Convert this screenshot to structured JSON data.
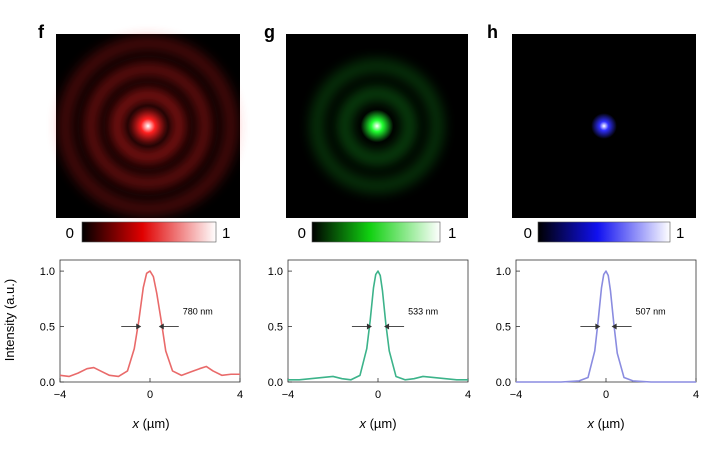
{
  "chart_data": [
    {
      "panel": "f",
      "type": "line",
      "color": "#e96a6a",
      "image_color": "#ff2020",
      "colorbar": {
        "min_label": "0",
        "max_label": "1",
        "start_color": "#000000",
        "mid_color": "#e00000",
        "end_color": "#ffffff"
      },
      "rings": [
        0.34,
        0.62,
        0.9
      ],
      "ring_strength": 0.55,
      "spot_size": 0.11,
      "xlabel_var": "x",
      "xlabel_unit": " (µm)",
      "ylabel": "Intensity (a.u.)",
      "show_ylabel": true,
      "xlim": [
        -4,
        4
      ],
      "ylim": [
        0,
        1.1
      ],
      "xticks": [
        -4,
        0,
        4
      ],
      "yticks": [
        0.0,
        0.5,
        1.0
      ],
      "x": [
        -4,
        -3.6,
        -3.2,
        -2.8,
        -2.5,
        -2.2,
        -1.8,
        -1.4,
        -1.0,
        -0.7,
        -0.5,
        -0.3,
        -0.15,
        0,
        0.15,
        0.3,
        0.5,
        0.7,
        1.0,
        1.4,
        1.8,
        2.2,
        2.5,
        2.8,
        3.2,
        3.6,
        4
      ],
      "y": [
        0.06,
        0.05,
        0.08,
        0.12,
        0.13,
        0.1,
        0.06,
        0.05,
        0.1,
        0.3,
        0.55,
        0.85,
        0.98,
        1.0,
        0.95,
        0.8,
        0.55,
        0.28,
        0.1,
        0.06,
        0.09,
        0.12,
        0.14,
        0.1,
        0.06,
        0.07,
        0.07
      ],
      "fwhm_label": "780 nm",
      "fwhm_left": -0.39,
      "fwhm_right": 0.39,
      "fwhm_level": 0.5
    },
    {
      "panel": "g",
      "type": "line",
      "color": "#3cb38a",
      "image_color": "#20ff30",
      "colorbar": {
        "min_label": "0",
        "max_label": "1",
        "start_color": "#000000",
        "mid_color": "#10d010",
        "end_color": "#ffffff"
      },
      "rings": [
        0.36,
        0.66
      ],
      "ring_strength": 0.28,
      "spot_size": 0.09,
      "xlabel_var": "x",
      "xlabel_unit": " (µm)",
      "ylabel": "",
      "show_ylabel": false,
      "xlim": [
        -4,
        4
      ],
      "ylim": [
        0,
        1.1
      ],
      "xticks": [
        -4,
        0,
        4
      ],
      "yticks": [
        0.0,
        0.5,
        1.0
      ],
      "x": [
        -4,
        -3.5,
        -3.0,
        -2.5,
        -2.0,
        -1.6,
        -1.2,
        -0.8,
        -0.5,
        -0.35,
        -0.2,
        -0.1,
        0,
        0.1,
        0.2,
        0.35,
        0.5,
        0.8,
        1.2,
        1.6,
        2.0,
        2.5,
        3.0,
        3.5,
        4
      ],
      "y": [
        0.02,
        0.02,
        0.03,
        0.04,
        0.05,
        0.03,
        0.02,
        0.06,
        0.3,
        0.55,
        0.85,
        0.97,
        1.0,
        0.96,
        0.82,
        0.52,
        0.28,
        0.05,
        0.02,
        0.03,
        0.05,
        0.04,
        0.03,
        0.02,
        0.02
      ],
      "fwhm_label": "533 nm",
      "fwhm_left": -0.27,
      "fwhm_right": 0.27,
      "fwhm_level": 0.5
    },
    {
      "panel": "h",
      "type": "line",
      "color": "#8a8ce0",
      "image_color": "#3030ff",
      "colorbar": {
        "min_label": "0",
        "max_label": "1",
        "start_color": "#000000",
        "mid_color": "#1010f0",
        "end_color": "#ffffff"
      },
      "rings": [],
      "ring_strength": 0,
      "spot_size": 0.07,
      "xlabel_var": "x",
      "xlabel_unit": " (µm)",
      "ylabel": "",
      "show_ylabel": false,
      "xlim": [
        -4,
        4
      ],
      "ylim": [
        0,
        1.1
      ],
      "xticks": [
        -4,
        0,
        4
      ],
      "yticks": [
        0.0,
        0.5,
        1.0
      ],
      "x": [
        -4,
        -3,
        -2,
        -1.2,
        -0.8,
        -0.5,
        -0.35,
        -0.2,
        -0.1,
        0,
        0.1,
        0.2,
        0.35,
        0.5,
        0.8,
        1.2,
        2,
        3,
        4
      ],
      "y": [
        0.0,
        0.0,
        0.0,
        0.01,
        0.04,
        0.28,
        0.55,
        0.85,
        0.97,
        1.0,
        0.96,
        0.82,
        0.52,
        0.26,
        0.04,
        0.01,
        0.0,
        0.0,
        0.0
      ],
      "fwhm_label": "507 nm",
      "fwhm_left": -0.25,
      "fwhm_right": 0.25,
      "fwhm_level": 0.5
    }
  ]
}
